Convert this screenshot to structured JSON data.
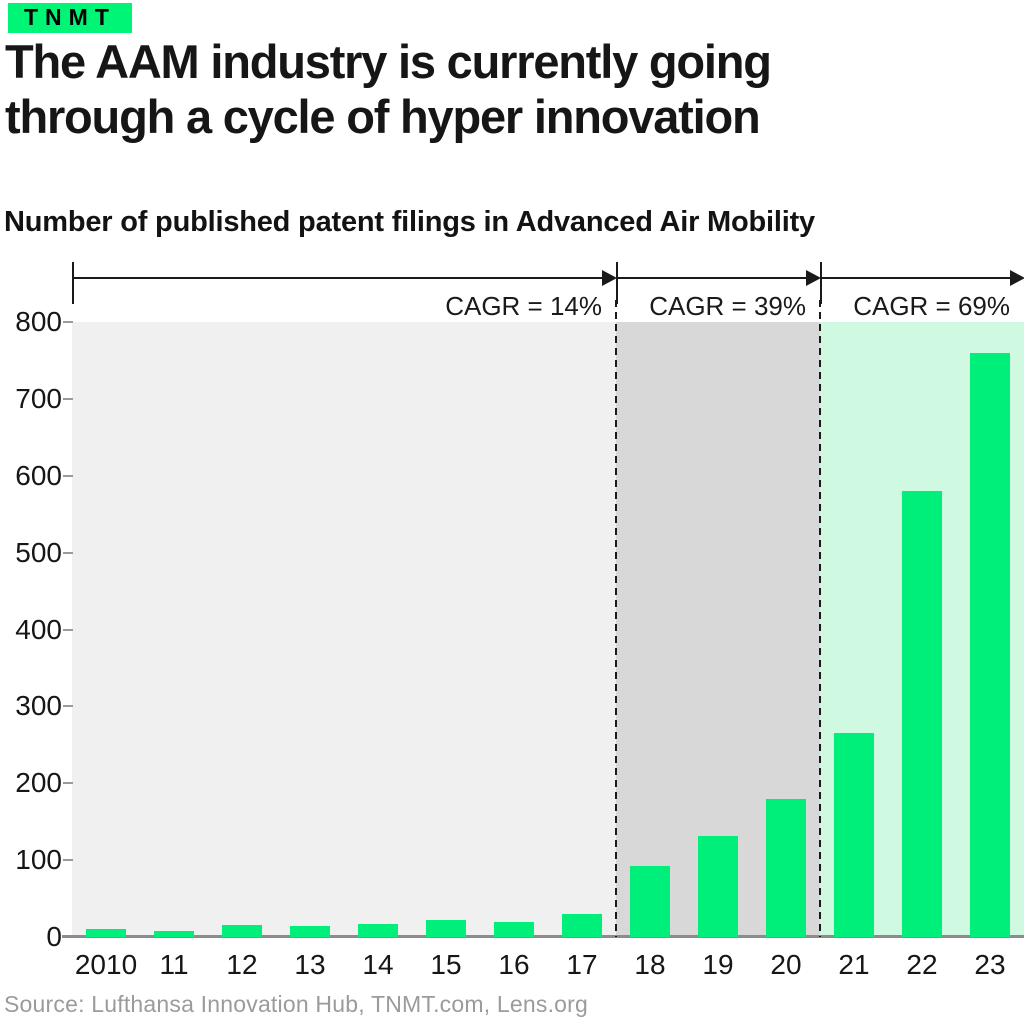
{
  "brand": {
    "logo_text": "TNMT",
    "logo_bg": "#00F576"
  },
  "header": {
    "title_lines": {
      "0": "The AAM industry is currently going",
      "1": "through a cycle of hyper innovation"
    }
  },
  "footer": {
    "source": "Source: Lufthansa Innovation Hub, TNMT.com, Lens.org"
  },
  "chart_data": {
    "type": "bar",
    "title": "Number of published patent filings in Advanced Air Mobility",
    "categories": [
      "2010",
      "11",
      "12",
      "13",
      "14",
      "15",
      "16",
      "17",
      "18",
      "19",
      "20",
      "21",
      "22",
      "23"
    ],
    "values": [
      11,
      8,
      15,
      14,
      17,
      22,
      20,
      30,
      92,
      132,
      180,
      265,
      580,
      760
    ],
    "ylim": [
      0,
      800
    ],
    "yticks": [
      0,
      100,
      200,
      300,
      400,
      500,
      600,
      700,
      800
    ],
    "xlabel": "",
    "ylabel": "",
    "grid": false,
    "legend": false,
    "bar_color": "#00EF7B",
    "axis_line_color": "#8C8C8C",
    "segments": [
      {
        "label": "CAGR = 14%",
        "start_index": 0,
        "end_index": 8,
        "background": "#F0F0F0"
      },
      {
        "label": "CAGR = 39%",
        "start_index": 8,
        "end_index": 11,
        "background": "#D8D8D8"
      },
      {
        "label": "CAGR = 69%",
        "start_index": 11,
        "end_index": 14,
        "background": "#CFFAE1"
      }
    ]
  }
}
